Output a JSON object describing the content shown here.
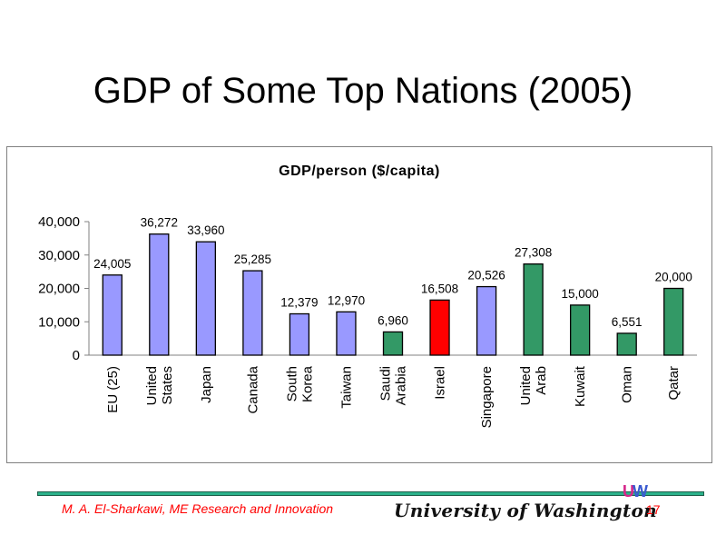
{
  "slide": {
    "title": "GDP of Some Top Nations (2005)",
    "footer_author": "M. A. El-Sharkawi, ME Research and Innovation",
    "footer_institution": "University of Washington",
    "logo_text_u": "U",
    "logo_text_w": "W",
    "page_number": "17"
  },
  "chart_data": {
    "type": "bar",
    "title": "GDP/person ($/capita)",
    "xlabel": "",
    "ylabel": "",
    "ylim": [
      0,
      40000
    ],
    "yticks": [
      0,
      10000,
      20000,
      30000,
      40000
    ],
    "ytick_labels": [
      "0",
      "10,000",
      "20,000",
      "30,000",
      "40,000"
    ],
    "grid": false,
    "legend": "none",
    "categories": [
      [
        "EU (25)"
      ],
      [
        "United",
        "States"
      ],
      [
        "Japan"
      ],
      [
        "Canada"
      ],
      [
        "South",
        "Korea"
      ],
      [
        "Taiwan"
      ],
      [
        "Saudi",
        "Arabia"
      ],
      [
        "Israel"
      ],
      [
        "Singapore"
      ],
      [
        "United",
        "Arab"
      ],
      [
        "Kuwait"
      ],
      [
        "Oman"
      ],
      [
        "Qatar"
      ]
    ],
    "values": [
      24005,
      36272,
      33960,
      25285,
      12379,
      12970,
      6960,
      16508,
      20526,
      27308,
      15000,
      6551,
      20000
    ],
    "value_labels": [
      "24,005",
      "36,272",
      "33,960",
      "25,285",
      "12,379",
      "12,970",
      "6,960",
      "16,508",
      "20,526",
      "27,308",
      "15,000",
      "6,551",
      "20,000"
    ],
    "bar_colors": [
      "#9999ff",
      "#9999ff",
      "#9999ff",
      "#9999ff",
      "#9999ff",
      "#9999ff",
      "#339966",
      "#ff0000",
      "#9999ff",
      "#339966",
      "#339966",
      "#339966",
      "#339966"
    ]
  }
}
